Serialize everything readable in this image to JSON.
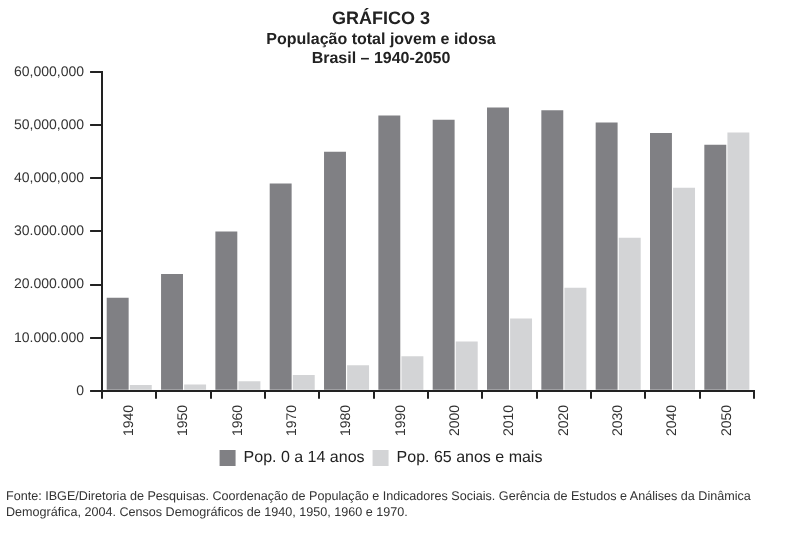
{
  "chart_data": {
    "type": "bar",
    "title": "GRÁFICO 3",
    "subtitle": "População total jovem e idosa\nBrasil – 1940-2050",
    "categories": [
      "1940",
      "1950",
      "1960",
      "1970",
      "1980",
      "1990",
      "2000",
      "2010",
      "2020",
      "2030",
      "2040",
      "2050"
    ],
    "series": [
      {
        "name": "Pop. 0 a 14 anos",
        "color": "#808084",
        "values": [
          17500000,
          22000000,
          30000000,
          39000000,
          45000000,
          51800000,
          51000000,
          53300000,
          52800000,
          50500000,
          48500000,
          46300000
        ]
      },
      {
        "name": "Pop. 65 anos e mais",
        "color": "#d3d4d6",
        "values": [
          1100000,
          1200000,
          1800000,
          3000000,
          4800000,
          6500000,
          9300000,
          13600000,
          19400000,
          28800000,
          38200000,
          48600000
        ]
      }
    ],
    "ylim": [
      0,
      60000000
    ],
    "yticks": [
      0,
      {
        "value": 10000000,
        "label": "10.000.000"
      },
      {
        "value": 20000000,
        "label": "20.000.000"
      },
      {
        "value": 30000000,
        "label": "30.000.000"
      },
      {
        "value": 40000000,
        "label": "40,000,000"
      },
      {
        "value": 50000000,
        "label": "50,000,000"
      },
      {
        "value": 60000000,
        "label": "60,000,000"
      }
    ],
    "grid": false,
    "legend": "bottom",
    "annotations": [
      "Fonte: IBGE/Diretoria de Pesquisas. Coordenação de População e Indicadores Sociais. Gerência de Estudos e Análises da Dinâmica Demográfica, 2004. Censos Demográficos de 1940, 1950, 1960 e 1970."
    ]
  }
}
